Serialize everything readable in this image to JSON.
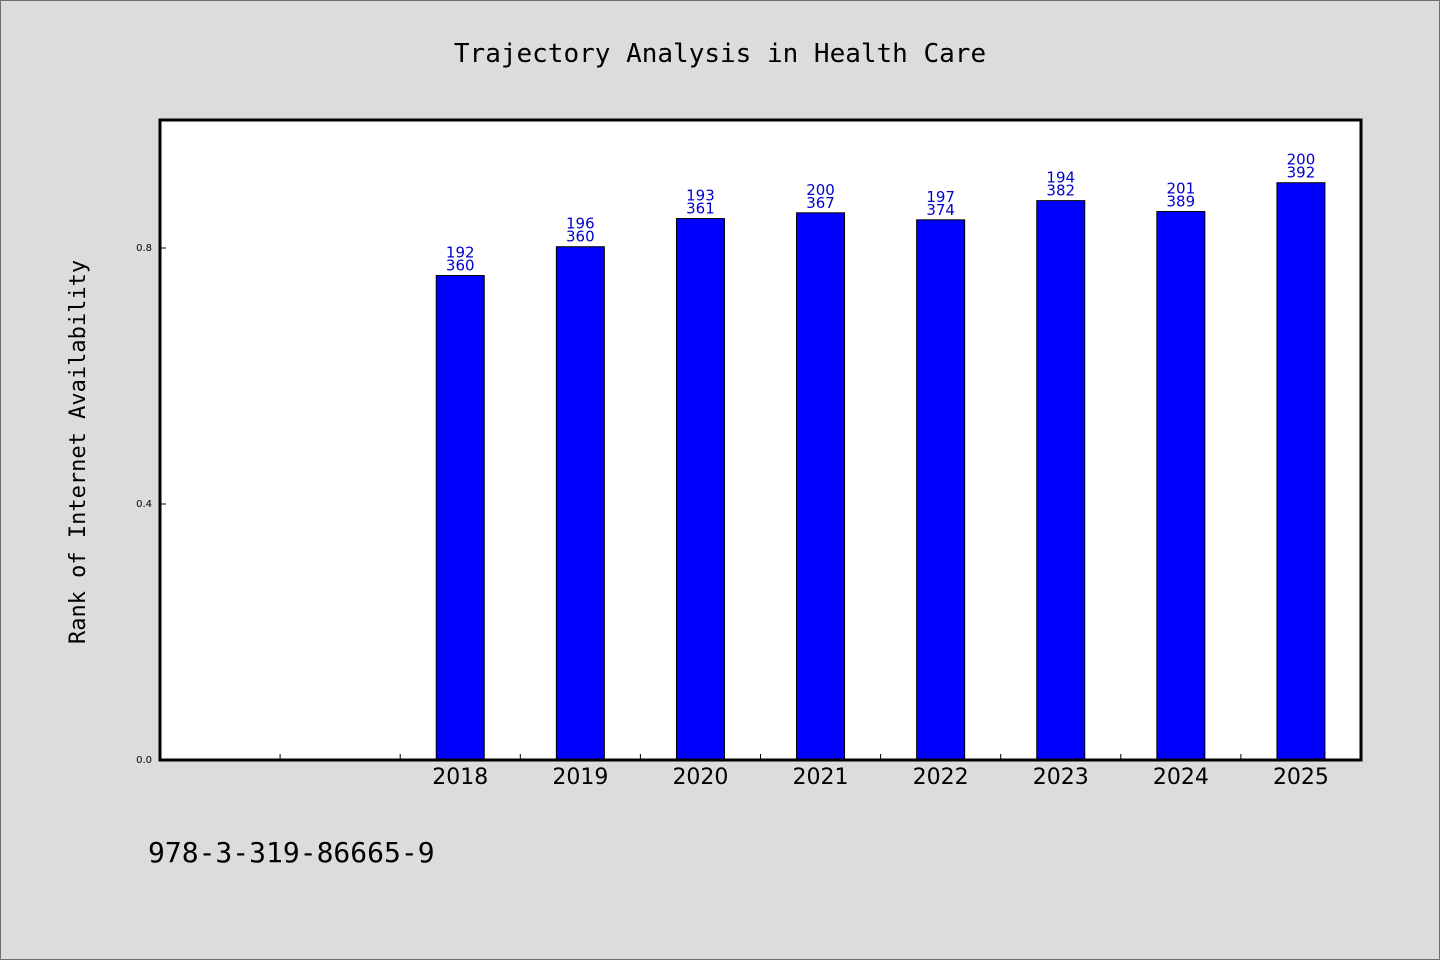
{
  "chart_data": {
    "type": "bar",
    "title": "Trajectory Analysis in Health Care",
    "ylabel": "Rank of Internet Availability",
    "xlabel": "",
    "categories": [
      "",
      "",
      "2018",
      "2019",
      "2020",
      "2021",
      "2022",
      "2023",
      "2024",
      "2025"
    ],
    "series": [
      {
        "values": [
          null,
          null,
          0.757,
          0.802,
          0.846,
          0.855,
          0.844,
          0.874,
          0.857,
          0.902
        ],
        "labels_top": [
          "",
          "",
          "192",
          "196",
          "193",
          "200",
          "197",
          "194",
          "201",
          "200"
        ],
        "labels_bottom": [
          "",
          "",
          "360",
          "360",
          "361",
          "367",
          "374",
          "382",
          "389",
          "392"
        ]
      }
    ],
    "ylim": [
      0,
      1.0
    ],
    "yticks": [
      "0.0",
      "0.4",
      "0.8"
    ],
    "ytick_values": [
      0.0,
      0.4,
      0.8
    ],
    "grid": false,
    "bar_color": "#0000ff",
    "label_color": "#0000cc"
  },
  "footer_text": "978-3-319-86665-9"
}
